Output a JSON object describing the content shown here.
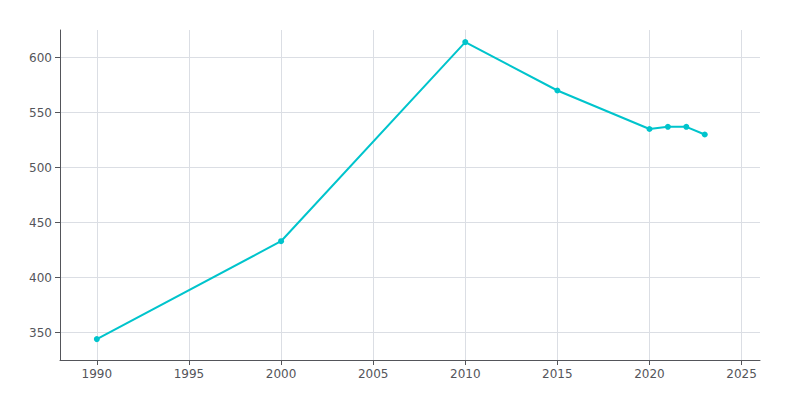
{
  "chart_data": {
    "type": "line",
    "x": [
      1990,
      2000,
      2010,
      2015,
      2020,
      2021,
      2022,
      2023
    ],
    "values": [
      344,
      433,
      614,
      570,
      535,
      537,
      537,
      530
    ],
    "color": "#00c4cc",
    "marker": "circle",
    "xlim": [
      1988,
      2026
    ],
    "ylim": [
      325,
      625
    ],
    "xticks": [
      1990,
      1995,
      2000,
      2005,
      2010,
      2015,
      2020,
      2025
    ],
    "yticks": [
      350,
      400,
      450,
      500,
      550,
      600
    ],
    "grid": true
  }
}
